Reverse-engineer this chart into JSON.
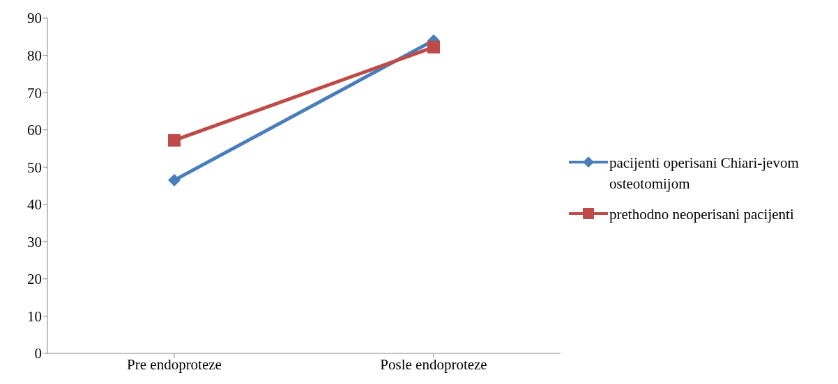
{
  "chart_data": {
    "type": "line",
    "categories": [
      "Pre endoproteze",
      "Posle endoproteze"
    ],
    "series": [
      {
        "name": "pacijenti operisani Chiari-jevom osteotomijom",
        "color": "#4a7ebb",
        "values": [
          46.5,
          84
        ],
        "marker": "diamond"
      },
      {
        "name": "prethodno neoperisani pacijenti",
        "color": "#be4b48",
        "values": [
          57.2,
          82.2
        ],
        "marker": "square"
      }
    ],
    "ylim": [
      0,
      90
    ],
    "yticks": [
      0,
      10,
      20,
      30,
      40,
      50,
      60,
      70,
      80,
      90
    ],
    "grid": false,
    "legend": "right",
    "line_style": "solid"
  }
}
